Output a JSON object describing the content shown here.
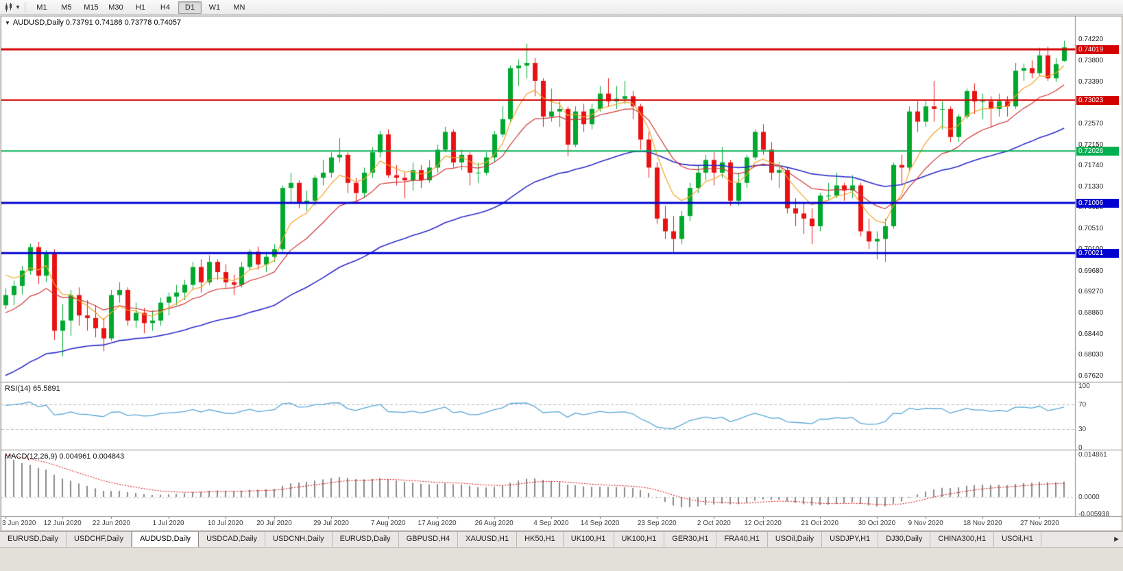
{
  "toolbar": {
    "chart_type_icon": "candlestick-chart-icon",
    "dropdown_icon": "chevron-down-icon",
    "timeframes": [
      "M1",
      "M5",
      "M15",
      "M30",
      "H1",
      "H4",
      "D1",
      "W1",
      "MN"
    ],
    "active_timeframe": "D1"
  },
  "chart": {
    "title": "AUDUSD,Daily 0.73791 0.74188 0.73778 0.74057",
    "collapse_icon": "triangle-down-icon"
  },
  "tabs": {
    "items": [
      "EURUSD,Daily",
      "USDCHF,Daily",
      "AUDUSD,Daily",
      "USDCAD,Daily",
      "USDCNH,Daily",
      "EURUSD,Daily",
      "GBPUSD,H4",
      "XAUUSD,H1",
      "HK50,H1",
      "UK100,H1",
      "UK100,H1",
      "GER30,H1",
      "FRA40,H1",
      "USOil,Daily",
      "USDJPY,H1",
      "DJ30,Daily",
      "CHINA300,H1",
      "USOil,H1"
    ],
    "active_index": 2,
    "scroll_icon": "chevron-right-icon"
  },
  "colors": {
    "up_candle": "#00a82d",
    "down_candle": "#e81212",
    "ma_fast": "#f5a325",
    "ma_medium": "#d23535",
    "ma_slow": "#2b2bca",
    "rsi_line": "#58a6d8",
    "macd_histogram": "#8a8a8a",
    "macd_signal": "#dd0000"
  },
  "chart_data": {
    "type": "candlestick",
    "symbol": "AUDUSD",
    "timeframe": "Daily",
    "last_bar": {
      "open": "0.73791",
      "high": "0.74188",
      "low": "0.73778",
      "close": "0.74057"
    },
    "y_axis_labels": [
      "0.74220",
      "0.73800",
      "0.73390",
      "0.72980",
      "0.72570",
      "0.72150",
      "0.71740",
      "0.71330",
      "0.70920",
      "0.70510",
      "0.70100",
      "0.69680",
      "0.69270",
      "0.68860",
      "0.68440",
      "0.68030",
      "0.67620"
    ],
    "x_tick_labels": [
      "3 Jun 2020",
      "12 Jun 2020",
      "22 Jun 2020",
      "1 Jul 2020",
      "10 Jul 2020",
      "20 Jul 2020",
      "29 Jul 2020",
      "7 Aug 2020",
      "17 Aug 2020",
      "26 Aug 2020",
      "4 Sep 2020",
      "14 Sep 2020",
      "23 Sep 2020",
      "2 Oct 2020",
      "12 Oct 2020",
      "21 Oct 2020",
      "30 Oct 2020",
      "9 Nov 2020",
      "18 Nov 2020",
      "27 Nov 2020"
    ],
    "x_tick_indices": [
      0,
      7,
      13,
      20,
      27,
      33,
      40,
      47,
      53,
      60,
      67,
      73,
      80,
      87,
      93,
      100,
      107,
      113,
      120,
      127
    ],
    "horizontal_lines": [
      {
        "price": 0.74019,
        "label": "0.74019",
        "color": "#d40000",
        "width": 3
      },
      {
        "price": 0.73023,
        "label": "0.73023",
        "color": "#d40000",
        "width": 2
      },
      {
        "price": 0.72026,
        "label": "0.72026",
        "color": "#00b050",
        "width": 2
      },
      {
        "price": 0.71006,
        "label": "0.71006",
        "color": "#0000d0",
        "width": 3
      },
      {
        "price": 0.70021,
        "label": "0.70021",
        "color": "#0000d0",
        "width": 3
      }
    ],
    "moving_averages": [
      {
        "period": 6,
        "color": "#f5a325"
      },
      {
        "period": 14,
        "color": "#d23535"
      },
      {
        "period": 45,
        "color": "#2b2bca"
      }
    ],
    "indicators": [
      {
        "name": "RSI",
        "label": "RSI(14) 65.5891",
        "period": 14,
        "value": 65.5891,
        "axis": [
          {
            "text": "100",
            "value": 100
          },
          {
            "text": "70",
            "value": 70
          },
          {
            "text": "30",
            "value": 30
          },
          {
            "text": "0",
            "value": 0
          }
        ],
        "level_lines": [
          70,
          30
        ]
      },
      {
        "name": "MACD",
        "label": "MACD(12,26,9) 0.004961 0.004843",
        "fast": 12,
        "slow": 26,
        "signal": 9,
        "macd_value": 0.004961,
        "signal_value": 0.004843,
        "axis": [
          {
            "text": "0.014861",
            "value": 0.014861
          },
          {
            "text": "0.0000",
            "value": 0
          },
          {
            "text": "-0.005938",
            "value": -0.005938
          }
        ]
      }
    ],
    "ohlc": [
      [
        0.69,
        0.6933,
        0.6893,
        0.692
      ],
      [
        0.692,
        0.6948,
        0.69,
        0.6938
      ],
      [
        0.6938,
        0.6977,
        0.6921,
        0.6968
      ],
      [
        0.6968,
        0.7021,
        0.696,
        0.7014
      ],
      [
        0.7014,
        0.7024,
        0.6942,
        0.6958
      ],
      [
        0.6958,
        0.7008,
        0.6946,
        0.7
      ],
      [
        0.7,
        0.701,
        0.6832,
        0.685
      ],
      [
        0.685,
        0.6902,
        0.68,
        0.687
      ],
      [
        0.687,
        0.693,
        0.684,
        0.692
      ],
      [
        0.692,
        0.6935,
        0.686,
        0.688
      ],
      [
        0.688,
        0.691,
        0.685,
        0.6875
      ],
      [
        0.6875,
        0.69,
        0.6837,
        0.6855
      ],
      [
        0.6855,
        0.6875,
        0.681,
        0.6835
      ],
      [
        0.6835,
        0.693,
        0.683,
        0.692
      ],
      [
        0.692,
        0.6945,
        0.6905,
        0.693
      ],
      [
        0.693,
        0.6935,
        0.686,
        0.687
      ],
      [
        0.687,
        0.6905,
        0.6855,
        0.6885
      ],
      [
        0.6885,
        0.6895,
        0.6845,
        0.6865
      ],
      [
        0.6865,
        0.689,
        0.685,
        0.687
      ],
      [
        0.687,
        0.6915,
        0.686,
        0.6905
      ],
      [
        0.6905,
        0.6925,
        0.688,
        0.6917
      ],
      [
        0.6917,
        0.694,
        0.69,
        0.6925
      ],
      [
        0.6925,
        0.695,
        0.691,
        0.694
      ],
      [
        0.694,
        0.6985,
        0.693,
        0.6975
      ],
      [
        0.6975,
        0.699,
        0.6925,
        0.6945
      ],
      [
        0.6945,
        0.6998,
        0.694,
        0.6985
      ],
      [
        0.6985,
        0.699,
        0.695,
        0.6965
      ],
      [
        0.6965,
        0.698,
        0.6935,
        0.6945
      ],
      [
        0.6945,
        0.696,
        0.692,
        0.694
      ],
      [
        0.694,
        0.6985,
        0.6935,
        0.6975
      ],
      [
        0.6975,
        0.701,
        0.697,
        0.7005
      ],
      [
        0.7005,
        0.7015,
        0.697,
        0.698
      ],
      [
        0.698,
        0.7005,
        0.6965,
        0.6995
      ],
      [
        0.6995,
        0.702,
        0.6985,
        0.701
      ],
      [
        0.701,
        0.7135,
        0.7005,
        0.713
      ],
      [
        0.713,
        0.716,
        0.71,
        0.714
      ],
      [
        0.714,
        0.7145,
        0.709,
        0.71
      ],
      [
        0.71,
        0.7125,
        0.7085,
        0.7105
      ],
      [
        0.7105,
        0.7155,
        0.7095,
        0.715
      ],
      [
        0.715,
        0.7185,
        0.7135,
        0.716
      ],
      [
        0.716,
        0.72,
        0.715,
        0.719
      ],
      [
        0.719,
        0.7228,
        0.718,
        0.7195
      ],
      [
        0.7195,
        0.72,
        0.712,
        0.714
      ],
      [
        0.714,
        0.715,
        0.71,
        0.712
      ],
      [
        0.712,
        0.717,
        0.711,
        0.716
      ],
      [
        0.716,
        0.721,
        0.715,
        0.72
      ],
      [
        0.72,
        0.7242,
        0.719,
        0.7235
      ],
      [
        0.7235,
        0.7245,
        0.715,
        0.7155
      ],
      [
        0.7155,
        0.7175,
        0.7135,
        0.715
      ],
      [
        0.715,
        0.716,
        0.711,
        0.7145
      ],
      [
        0.7145,
        0.718,
        0.7125,
        0.7165
      ],
      [
        0.7165,
        0.7175,
        0.713,
        0.7145
      ],
      [
        0.7145,
        0.7185,
        0.714,
        0.717
      ],
      [
        0.717,
        0.7215,
        0.716,
        0.7205
      ],
      [
        0.7205,
        0.725,
        0.72,
        0.724
      ],
      [
        0.724,
        0.7245,
        0.717,
        0.718
      ],
      [
        0.718,
        0.7205,
        0.7165,
        0.7195
      ],
      [
        0.7195,
        0.72,
        0.7135,
        0.716
      ],
      [
        0.716,
        0.718,
        0.714,
        0.716
      ],
      [
        0.716,
        0.72,
        0.7155,
        0.719
      ],
      [
        0.719,
        0.7242,
        0.718,
        0.7235
      ],
      [
        0.7235,
        0.729,
        0.723,
        0.7265
      ],
      [
        0.7265,
        0.737,
        0.726,
        0.7365
      ],
      [
        0.7365,
        0.7382,
        0.733,
        0.737
      ],
      [
        0.737,
        0.7413,
        0.7345,
        0.7375
      ],
      [
        0.7375,
        0.7385,
        0.731,
        0.734
      ],
      [
        0.734,
        0.7345,
        0.725,
        0.727
      ],
      [
        0.727,
        0.7325,
        0.726,
        0.728
      ],
      [
        0.728,
        0.73,
        0.725,
        0.7285
      ],
      [
        0.7285,
        0.729,
        0.7192,
        0.7215
      ],
      [
        0.7215,
        0.729,
        0.721,
        0.728
      ],
      [
        0.728,
        0.7295,
        0.724,
        0.7255
      ],
      [
        0.7255,
        0.7295,
        0.7245,
        0.7285
      ],
      [
        0.7285,
        0.733,
        0.728,
        0.7315
      ],
      [
        0.7315,
        0.7345,
        0.729,
        0.73
      ],
      [
        0.73,
        0.733,
        0.7285,
        0.7305
      ],
      [
        0.7305,
        0.734,
        0.7295,
        0.731
      ],
      [
        0.731,
        0.732,
        0.7265,
        0.729
      ],
      [
        0.729,
        0.7295,
        0.7205,
        0.7225
      ],
      [
        0.7225,
        0.724,
        0.715,
        0.717
      ],
      [
        0.717,
        0.718,
        0.706,
        0.707
      ],
      [
        0.707,
        0.7095,
        0.703,
        0.7045
      ],
      [
        0.7045,
        0.7075,
        0.7005,
        0.703
      ],
      [
        0.703,
        0.7085,
        0.702,
        0.7075
      ],
      [
        0.7075,
        0.714,
        0.7065,
        0.713
      ],
      [
        0.713,
        0.7175,
        0.712,
        0.716
      ],
      [
        0.716,
        0.7195,
        0.7145,
        0.7185
      ],
      [
        0.7185,
        0.72,
        0.7135,
        0.716
      ],
      [
        0.716,
        0.721,
        0.715,
        0.718
      ],
      [
        0.718,
        0.7185,
        0.7095,
        0.7105
      ],
      [
        0.7105,
        0.716,
        0.7095,
        0.714
      ],
      [
        0.714,
        0.7195,
        0.713,
        0.719
      ],
      [
        0.719,
        0.7245,
        0.7185,
        0.724
      ],
      [
        0.724,
        0.7255,
        0.7195,
        0.7205
      ],
      [
        0.7205,
        0.722,
        0.7145,
        0.716
      ],
      [
        0.716,
        0.718,
        0.713,
        0.7165
      ],
      [
        0.7165,
        0.717,
        0.708,
        0.709
      ],
      [
        0.709,
        0.711,
        0.7055,
        0.708
      ],
      [
        0.708,
        0.71,
        0.704,
        0.707
      ],
      [
        0.707,
        0.709,
        0.702,
        0.7055
      ],
      [
        0.7055,
        0.712,
        0.7045,
        0.7115
      ],
      [
        0.7115,
        0.714,
        0.7105,
        0.7115
      ],
      [
        0.7115,
        0.716,
        0.711,
        0.7135
      ],
      [
        0.7135,
        0.714,
        0.7105,
        0.7125
      ],
      [
        0.7125,
        0.7155,
        0.711,
        0.7135
      ],
      [
        0.7135,
        0.714,
        0.7035,
        0.7045
      ],
      [
        0.7045,
        0.707,
        0.701,
        0.7025
      ],
      [
        0.7025,
        0.7045,
        0.699,
        0.703
      ],
      [
        0.703,
        0.707,
        0.6985,
        0.7055
      ],
      [
        0.7055,
        0.718,
        0.705,
        0.7175
      ],
      [
        0.7175,
        0.7195,
        0.7135,
        0.717
      ],
      [
        0.717,
        0.729,
        0.7165,
        0.728
      ],
      [
        0.728,
        0.73,
        0.724,
        0.726
      ],
      [
        0.726,
        0.73,
        0.725,
        0.729
      ],
      [
        0.729,
        0.734,
        0.726,
        0.7285
      ],
      [
        0.7285,
        0.73,
        0.7245,
        0.7285
      ],
      [
        0.7285,
        0.729,
        0.722,
        0.723
      ],
      [
        0.723,
        0.7275,
        0.722,
        0.727
      ],
      [
        0.727,
        0.7325,
        0.7265,
        0.732
      ],
      [
        0.732,
        0.7335,
        0.7275,
        0.73
      ],
      [
        0.73,
        0.7315,
        0.7265,
        0.73
      ],
      [
        0.73,
        0.731,
        0.725,
        0.7285
      ],
      [
        0.7285,
        0.7315,
        0.727,
        0.73
      ],
      [
        0.73,
        0.731,
        0.727,
        0.729
      ],
      [
        0.729,
        0.7375,
        0.7285,
        0.736
      ],
      [
        0.736,
        0.7374,
        0.734,
        0.7365
      ],
      [
        0.7365,
        0.738,
        0.7345,
        0.7355
      ],
      [
        0.7355,
        0.7405,
        0.735,
        0.739
      ],
      [
        0.739,
        0.7407,
        0.734,
        0.7345
      ],
      [
        0.7345,
        0.7385,
        0.7338,
        0.7373
      ],
      [
        0.73791,
        0.74188,
        0.73778,
        0.74057
      ]
    ]
  }
}
